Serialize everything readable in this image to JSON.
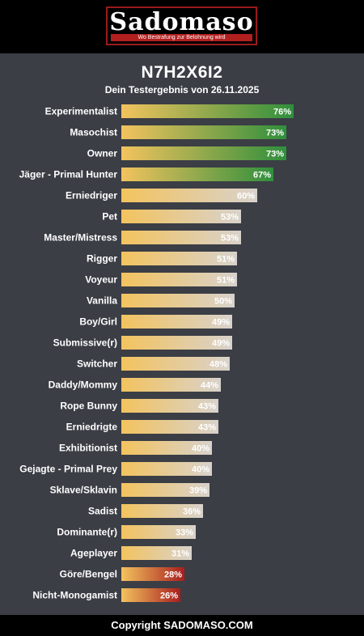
{
  "header": {
    "logo_text": "Sadomaso",
    "logo_tagline": "Wo Bestrafung zur Belohnung wird"
  },
  "result": {
    "code": "N7H2X6I2",
    "subtitle": "Dein Testergebnis von 26.11.2025"
  },
  "footer": {
    "copyright": "Copyright SADOMASO.COM"
  },
  "colors": {
    "background": "#3b3e45",
    "bar_start": "#f3c35e",
    "bar_high": "#2f8f3c",
    "bar_mid": "#d8d2cc",
    "bar_low": "#a81e1e",
    "logo_red": "#b21f1f"
  },
  "chart_data": {
    "type": "bar",
    "orientation": "horizontal",
    "value_unit": "%",
    "xlim": [
      0,
      100
    ],
    "categories": [
      "Experimentalist",
      "Masochist",
      "Owner",
      "Jäger - Primal Hunter",
      "Erniedriger",
      "Pet",
      "Master/Mistress",
      "Rigger",
      "Voyeur",
      "Vanilla",
      "Boy/Girl",
      "Submissive(r)",
      "Switcher",
      "Daddy/Mommy",
      "Rope Bunny",
      "Erniedrigte",
      "Exhibitionist",
      "Gejagte - Primal Prey",
      "Sklave/Sklavin",
      "Sadist",
      "Dominante(r)",
      "Ageplayer",
      "Göre/Bengel",
      "Nicht-Monogamist"
    ],
    "values": [
      76,
      73,
      73,
      67,
      60,
      53,
      53,
      51,
      51,
      50,
      49,
      49,
      48,
      44,
      43,
      43,
      40,
      40,
      39,
      36,
      33,
      31,
      28,
      26
    ]
  }
}
